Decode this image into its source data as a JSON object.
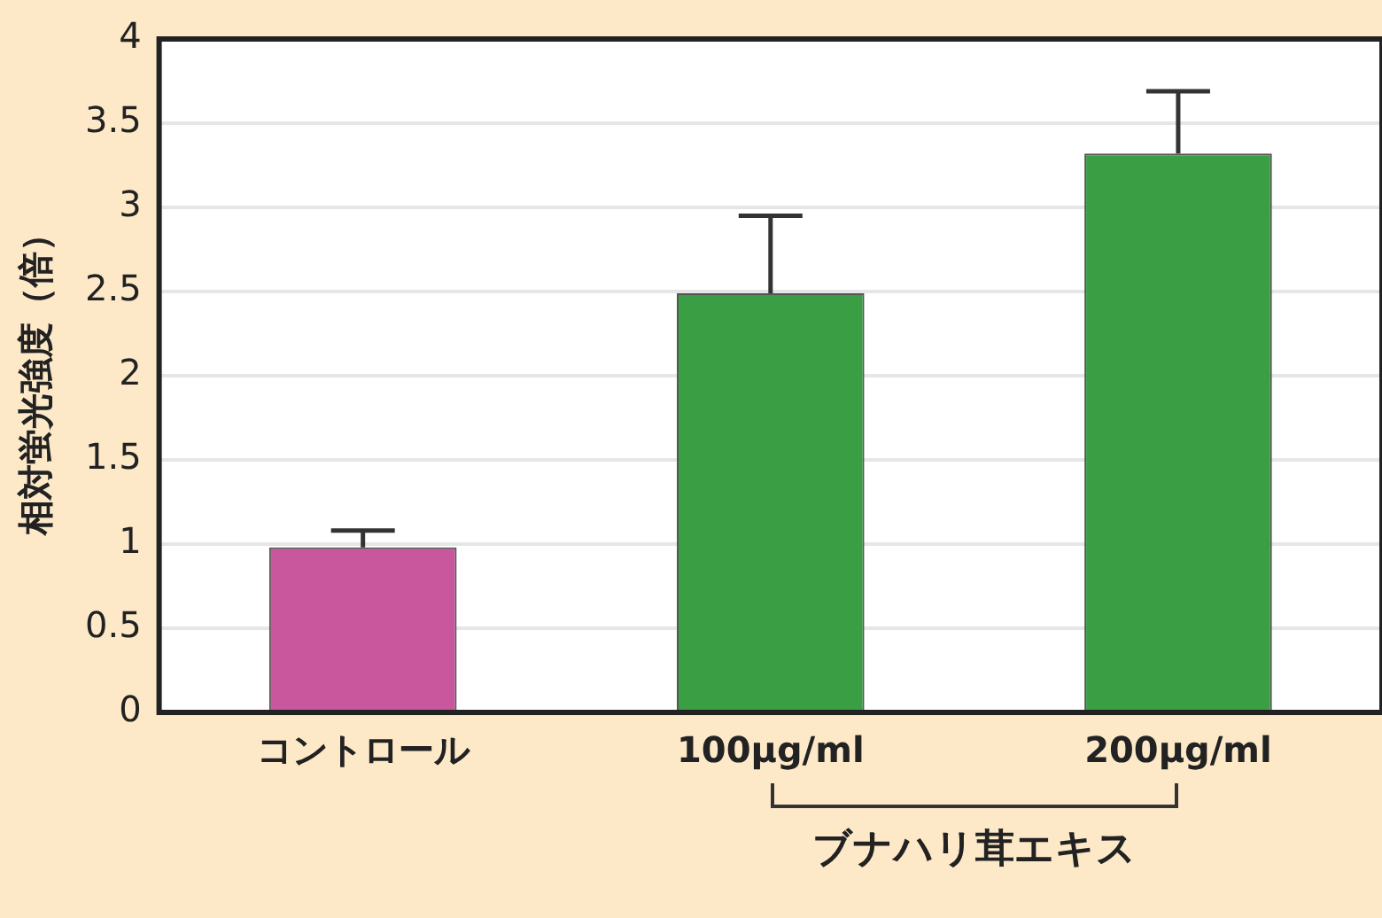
{
  "chart_data": {
    "type": "bar",
    "ylabel": "相対蛍光強度（倍）",
    "categories": [
      "コントロール",
      "100μg/ml",
      "200μg/ml"
    ],
    "values": [
      0.98,
      2.49,
      3.32
    ],
    "errors": [
      0.1,
      0.46,
      0.37
    ],
    "colors": [
      "#c8579e",
      "#3a9e44",
      "#3a9e44"
    ],
    "ylim": [
      0,
      4
    ],
    "yticks": [
      0,
      0.5,
      1,
      1.5,
      2,
      2.5,
      3,
      3.5,
      4
    ],
    "grid": "y",
    "annotations": [
      "ブナハリ茸エキス"
    ]
  }
}
